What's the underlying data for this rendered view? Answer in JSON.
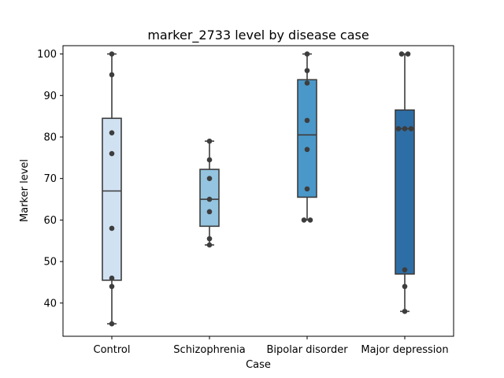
{
  "chart_data": {
    "type": "box",
    "title": "marker_2733 level by disease case",
    "xlabel": "Case",
    "ylabel": "Marker level",
    "ylim": [
      32,
      102
    ],
    "yticks": [
      40,
      50,
      60,
      70,
      80,
      90,
      100
    ],
    "grid": false,
    "categories": [
      "Control",
      "Schizophrenia",
      "Bipolar disorder",
      "Major depression"
    ],
    "colors": [
      "#d0e1f2",
      "#94c4df",
      "#4a98c9",
      "#2e6ea6"
    ],
    "boxes": [
      {
        "whisker_low": 35,
        "q1": 45.5,
        "median": 67,
        "q3": 84.5,
        "whisker_high": 100
      },
      {
        "whisker_low": 54,
        "q1": 58.5,
        "median": 65,
        "q3": 72.2,
        "whisker_high": 79
      },
      {
        "whisker_low": 60,
        "q1": 65.5,
        "median": 80.5,
        "q3": 93.8,
        "whisker_high": 100
      },
      {
        "whisker_low": 38,
        "q1": 47,
        "median": 82,
        "q3": 86.5,
        "whisker_high": 100
      }
    ],
    "points": [
      [
        35,
        44,
        46,
        58,
        76,
        81,
        95,
        100
      ],
      [
        54,
        55.5,
        62,
        65,
        70,
        74.5,
        79
      ],
      [
        60,
        60,
        67.5,
        77,
        84,
        93,
        96,
        100
      ],
      [
        38,
        44,
        48,
        82,
        82,
        82,
        100,
        100
      ]
    ]
  }
}
